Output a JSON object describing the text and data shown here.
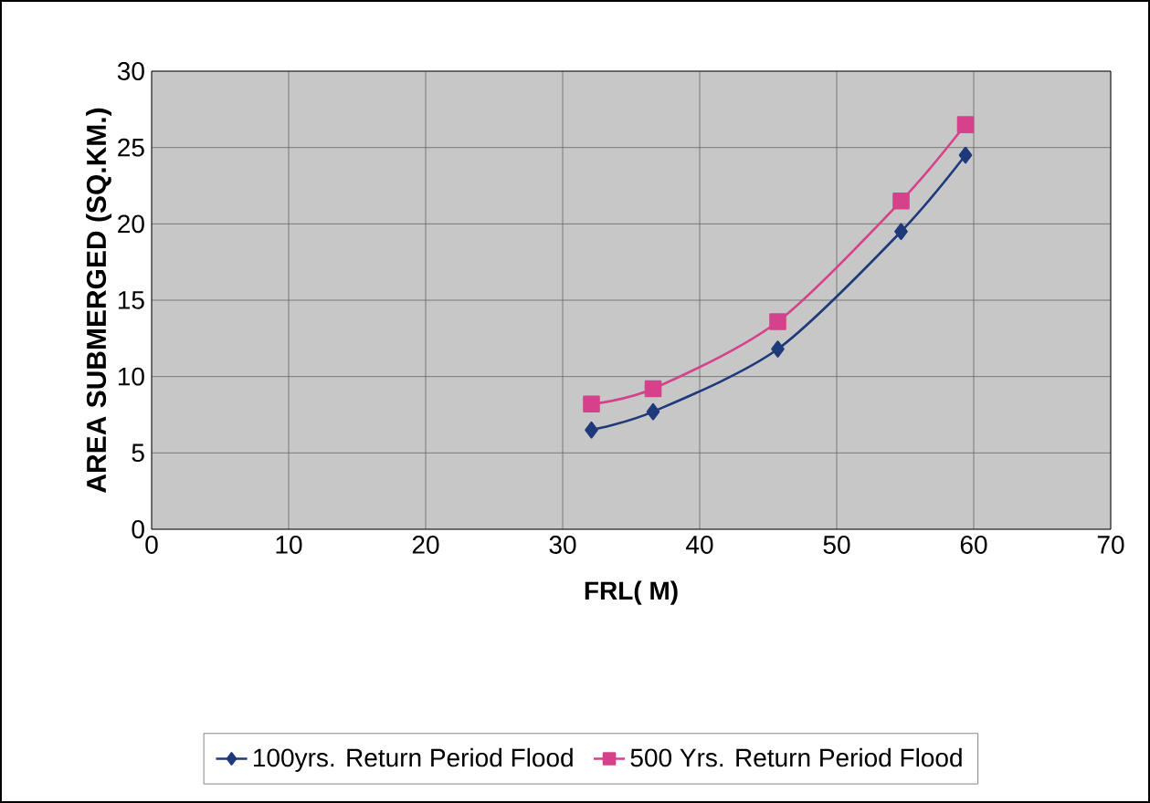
{
  "chart_data": {
    "type": "line",
    "xlabel": "FRL( M)",
    "ylabel": "AREA SUBMERGED (SQ.KM.)",
    "x": [
      32.1,
      36.6,
      45.7,
      54.7,
      59.4
    ],
    "series": [
      {
        "name": "100yrs. Return Period Flood",
        "color": "#1f3a7a",
        "marker": "diamond",
        "values": [
          6.5,
          7.7,
          11.8,
          19.5,
          24.5
        ]
      },
      {
        "name": "500 Yrs. Return Period Flood",
        "color": "#d6418c",
        "marker": "square",
        "values": [
          8.2,
          9.2,
          13.6,
          21.5,
          26.5
        ]
      }
    ],
    "xlim": [
      0,
      70
    ],
    "xticks": [
      0,
      10,
      20,
      30,
      40,
      50,
      60,
      70
    ],
    "ylim": [
      0,
      30
    ],
    "yticks": [
      0,
      5,
      10,
      15,
      20,
      25,
      30
    ],
    "grid": true,
    "legend": "bottom",
    "line_style": "solid"
  }
}
